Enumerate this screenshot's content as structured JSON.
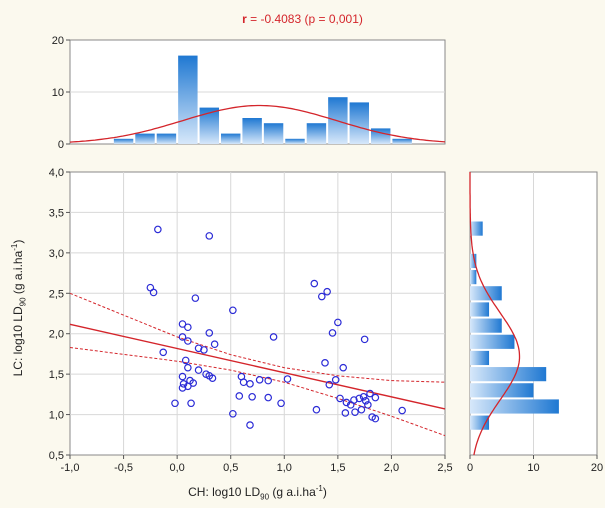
{
  "title": {
    "stat_name": "r",
    "stat_rest": " = -0.4083 (p = 0,001)"
  },
  "axis_labels": {
    "x_prefix": "CH: log10 LD",
    "x_sub": "90",
    "x_suffix": " (g a.i.ha",
    "x_sup": "-1",
    "x_end": ")",
    "y_prefix": "LC: log10 LD",
    "y_sub": "90",
    "y_suffix": " (g a.i.ha",
    "y_sup": "-1",
    "y_end": ")"
  },
  "colors": {
    "red": "#d4252b",
    "marker": "#2b2bd6",
    "bar_dark": "#1f78d2",
    "bar_light": "#d7e8fa",
    "grid": "#d8d8d8",
    "background": "#fbf9ee"
  },
  "chart_data": [
    {
      "type": "scatter",
      "title": "r = -0.4083 (p = 0,001)",
      "xlabel": "CH: log10 LD90 (g a.i.ha-1)",
      "ylabel": "LC: log10 LD90 (g a.i.ha-1)",
      "xlim": [
        -1.0,
        2.5
      ],
      "ylim": [
        0.5,
        4.0
      ],
      "x_ticks": [
        "-1,0",
        "-0,5",
        "0,0",
        "0,5",
        "1,0",
        "1,5",
        "2,0",
        "2,5"
      ],
      "y_ticks": [
        "0,5",
        "1,0",
        "1,5",
        "2,0",
        "2,5",
        "3,0",
        "3,5",
        "4,0"
      ],
      "grid": true,
      "points": [
        {
          "x": -0.18,
          "y": 3.29
        },
        {
          "x": 0.3,
          "y": 3.21
        },
        {
          "x": -0.25,
          "y": 2.57
        },
        {
          "x": -0.22,
          "y": 2.51
        },
        {
          "x": 0.17,
          "y": 2.44
        },
        {
          "x": 0.52,
          "y": 2.29
        },
        {
          "x": 1.28,
          "y": 2.62
        },
        {
          "x": 1.35,
          "y": 2.46
        },
        {
          "x": 1.4,
          "y": 2.52
        },
        {
          "x": 1.5,
          "y": 2.14
        },
        {
          "x": 1.45,
          "y": 2.01
        },
        {
          "x": 0.05,
          "y": 2.12
        },
        {
          "x": 0.1,
          "y": 2.08
        },
        {
          "x": 0.3,
          "y": 2.01
        },
        {
          "x": 0.05,
          "y": 1.96
        },
        {
          "x": 0.1,
          "y": 1.91
        },
        {
          "x": 0.9,
          "y": 1.96
        },
        {
          "x": 1.75,
          "y": 1.93
        },
        {
          "x": -0.13,
          "y": 1.77
        },
        {
          "x": 0.2,
          "y": 1.82
        },
        {
          "x": 0.25,
          "y": 1.8
        },
        {
          "x": 0.35,
          "y": 1.87
        },
        {
          "x": 0.08,
          "y": 1.67
        },
        {
          "x": 0.1,
          "y": 1.58
        },
        {
          "x": 0.2,
          "y": 1.55
        },
        {
          "x": 0.27,
          "y": 1.5
        },
        {
          "x": 0.3,
          "y": 1.48
        },
        {
          "x": 0.33,
          "y": 1.45
        },
        {
          "x": 0.05,
          "y": 1.47
        },
        {
          "x": 0.12,
          "y": 1.42
        },
        {
          "x": 0.06,
          "y": 1.38
        },
        {
          "x": 0.15,
          "y": 1.39
        },
        {
          "x": 0.05,
          "y": 1.33
        },
        {
          "x": 0.1,
          "y": 1.35
        },
        {
          "x": 0.6,
          "y": 1.47
        },
        {
          "x": 0.62,
          "y": 1.4
        },
        {
          "x": 0.68,
          "y": 1.38
        },
        {
          "x": 0.77,
          "y": 1.43
        },
        {
          "x": 0.85,
          "y": 1.42
        },
        {
          "x": 1.03,
          "y": 1.44
        },
        {
          "x": 1.38,
          "y": 1.64
        },
        {
          "x": 1.42,
          "y": 1.37
        },
        {
          "x": 1.48,
          "y": 1.43
        },
        {
          "x": 1.55,
          "y": 1.58
        },
        {
          "x": 1.52,
          "y": 1.2
        },
        {
          "x": 1.58,
          "y": 1.15
        },
        {
          "x": 1.62,
          "y": 1.12
        },
        {
          "x": 1.65,
          "y": 1.18
        },
        {
          "x": 1.7,
          "y": 1.2
        },
        {
          "x": 1.74,
          "y": 1.22
        },
        {
          "x": 1.76,
          "y": 1.17
        },
        {
          "x": 1.78,
          "y": 1.12
        },
        {
          "x": 1.8,
          "y": 1.26
        },
        {
          "x": 1.85,
          "y": 1.21
        },
        {
          "x": 1.72,
          "y": 1.06
        },
        {
          "x": 1.66,
          "y": 1.03
        },
        {
          "x": 1.82,
          "y": 0.97
        },
        {
          "x": 1.85,
          "y": 0.95
        },
        {
          "x": 1.57,
          "y": 1.02
        },
        {
          "x": 2.1,
          "y": 1.05
        },
        {
          "x": 0.13,
          "y": 1.14
        },
        {
          "x": -0.02,
          "y": 1.14
        },
        {
          "x": 0.52,
          "y": 1.01
        },
        {
          "x": 0.58,
          "y": 1.23
        },
        {
          "x": 0.7,
          "y": 1.22
        },
        {
          "x": 0.85,
          "y": 1.21
        },
        {
          "x": 0.97,
          "y": 1.14
        },
        {
          "x": 0.68,
          "y": 0.87
        },
        {
          "x": 1.3,
          "y": 1.06
        }
      ],
      "regression": {
        "intercept": 1.817,
        "slope": -0.299
      },
      "confidence_band": {
        "upper": [
          {
            "x": -1.0,
            "y": 2.5
          },
          {
            "x": 0.0,
            "y": 1.96
          },
          {
            "x": 0.5,
            "y": 1.74
          },
          {
            "x": 1.0,
            "y": 1.58
          },
          {
            "x": 1.5,
            "y": 1.48
          },
          {
            "x": 2.0,
            "y": 1.42
          },
          {
            "x": 2.5,
            "y": 1.4
          }
        ],
        "lower": [
          {
            "x": -1.0,
            "y": 1.83
          },
          {
            "x": 0.0,
            "y": 1.66
          },
          {
            "x": 0.5,
            "y": 1.55
          },
          {
            "x": 1.0,
            "y": 1.4
          },
          {
            "x": 1.5,
            "y": 1.2
          },
          {
            "x": 2.0,
            "y": 0.98
          },
          {
            "x": 2.5,
            "y": 0.74
          }
        ]
      }
    },
    {
      "type": "bar",
      "orientation": "vertical",
      "xlim": [
        -1.0,
        2.5
      ],
      "ylim": [
        0,
        20
      ],
      "y_ticks": [
        "0",
        "10",
        "20"
      ],
      "bin_width": 0.2,
      "bin_starts": [
        -0.6,
        -0.4,
        -0.2,
        0.0,
        0.2,
        0.4,
        0.6,
        0.8,
        1.0,
        1.2,
        1.4,
        1.6,
        1.8,
        2.0
      ],
      "values": [
        1,
        2,
        2,
        17,
        7,
        2,
        5,
        4,
        1,
        4,
        9,
        8,
        3,
        1
      ],
      "normal_fit": {
        "mean": 0.77,
        "sd": 0.72,
        "peak": 7.4
      }
    },
    {
      "type": "bar",
      "orientation": "horizontal",
      "xlim": [
        0,
        20
      ],
      "ylim": [
        0.5,
        4.0
      ],
      "x_ticks": [
        "0",
        "10",
        "20"
      ],
      "bin_width": 0.2,
      "bin_starts": [
        0.8,
        1.0,
        1.2,
        1.4,
        1.6,
        1.8,
        2.0,
        2.2,
        2.4,
        2.6,
        2.8,
        3.0,
        3.2
      ],
      "values": [
        3,
        14,
        10,
        12,
        3,
        7,
        5,
        3,
        5,
        1,
        1,
        0,
        2
      ],
      "normal_fit": {
        "mean": 1.72,
        "sd": 0.54,
        "peak": 7.8
      }
    }
  ]
}
